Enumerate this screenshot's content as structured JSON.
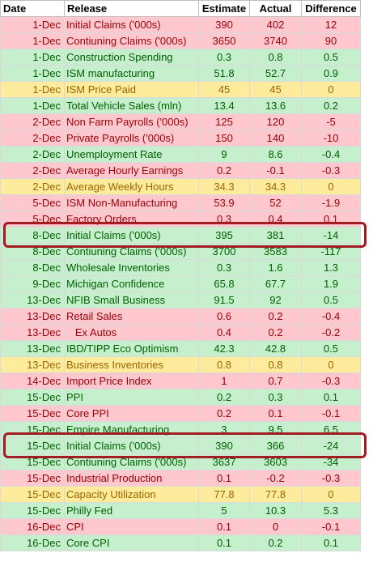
{
  "headers": [
    "Date",
    "Release",
    "Estimate",
    "Actual",
    "Difference"
  ],
  "colors": {
    "red_bg": "#ffc7ce",
    "red_fg": "#9c0006",
    "green_bg": "#c6efce",
    "green_fg": "#006100",
    "yellow_bg": "#ffeb9c",
    "yellow_fg": "#9c6500",
    "highlight_border": "#a31c23"
  },
  "rows": [
    {
      "date": "1-Dec",
      "release": "Initial Claims ('000s)",
      "estimate": "390",
      "actual": "402",
      "difference": "12",
      "status": "red"
    },
    {
      "date": "1-Dec",
      "release": "Contiuning Claims ('000s)",
      "estimate": "3650",
      "actual": "3740",
      "difference": "90",
      "status": "red"
    },
    {
      "date": "1-Dec",
      "release": "Construction Spending",
      "estimate": "0.3",
      "actual": "0.8",
      "difference": "0.5",
      "status": "green"
    },
    {
      "date": "1-Dec",
      "release": "ISM manufacturing",
      "estimate": "51.8",
      "actual": "52.7",
      "difference": "0.9",
      "status": "green"
    },
    {
      "date": "1-Dec",
      "release": "ISM Price Paid",
      "estimate": "45",
      "actual": "45",
      "difference": "0",
      "status": "yellow"
    },
    {
      "date": "1-Dec",
      "release": "Total Vehicle Sales (mln)",
      "estimate": "13.4",
      "actual": "13.6",
      "difference": "0.2",
      "status": "green"
    },
    {
      "date": "2-Dec",
      "release": "Non Farm Payrolls ('000s)",
      "estimate": "125",
      "actual": "120",
      "difference": "-5",
      "status": "red"
    },
    {
      "date": "2-Dec",
      "release": "Private Payrolls ('000s)",
      "estimate": "150",
      "actual": "140",
      "difference": "-10",
      "status": "red"
    },
    {
      "date": "2-Dec",
      "release": "Unemployment Rate",
      "estimate": "9",
      "actual": "8.6",
      "difference": "-0.4",
      "status": "green"
    },
    {
      "date": "2-Dec",
      "release": "Average Hourly Earnings",
      "estimate": "0.2",
      "actual": "-0.1",
      "difference": "-0.3",
      "status": "red"
    },
    {
      "date": "2-Dec",
      "release": "Average Weekly Hours",
      "estimate": "34.3",
      "actual": "34.3",
      "difference": "0",
      "status": "yellow"
    },
    {
      "date": "5-Dec",
      "release": "ISM Non-Manufacturing",
      "estimate": "53.9",
      "actual": "52",
      "difference": "-1.9",
      "status": "red"
    },
    {
      "date": "5-Dec",
      "release": "Factory Orders",
      "estimate": "0.3",
      "actual": "0.4",
      "difference": "0.1",
      "status": "red"
    },
    {
      "date": "8-Dec",
      "release": "Initial Claims ('000s)",
      "estimate": "395",
      "actual": "381",
      "difference": "-14",
      "status": "green"
    },
    {
      "date": "8-Dec",
      "release": "Contiuning Claims ('000s)",
      "estimate": "3700",
      "actual": "3583",
      "difference": "-117",
      "status": "green"
    },
    {
      "date": "8-Dec",
      "release": "Wholesale Inventories",
      "estimate": "0.3",
      "actual": "1.6",
      "difference": "1.3",
      "status": "green"
    },
    {
      "date": "9-Dec",
      "release": "Michigan Confidence",
      "estimate": "65.8",
      "actual": "67.7",
      "difference": "1.9",
      "status": "green"
    },
    {
      "date": "13-Dec",
      "release": "NFIB Small Business",
      "estimate": "91.5",
      "actual": "92",
      "difference": "0.5",
      "status": "green"
    },
    {
      "date": "13-Dec",
      "release": "Retail Sales",
      "estimate": "0.6",
      "actual": "0.2",
      "difference": "-0.4",
      "status": "red"
    },
    {
      "date": "13-Dec",
      "release": "   Ex Autos",
      "estimate": "0.4",
      "actual": "0.2",
      "difference": "-0.2",
      "status": "red"
    },
    {
      "date": "13-Dec",
      "release": "IBD/TIPP Eco Optimism",
      "estimate": "42.3",
      "actual": "42.8",
      "difference": "0.5",
      "status": "green"
    },
    {
      "date": "13-Dec",
      "release": "Business Inventories",
      "estimate": "0.8",
      "actual": "0.8",
      "difference": "0",
      "status": "yellow"
    },
    {
      "date": "14-Dec",
      "release": "Import Price Index",
      "estimate": "1",
      "actual": "0.7",
      "difference": "-0.3",
      "status": "red"
    },
    {
      "date": "15-Dec",
      "release": "PPI",
      "estimate": "0.2",
      "actual": "0.3",
      "difference": "0.1",
      "status": "green"
    },
    {
      "date": "15-Dec",
      "release": "Core PPI",
      "estimate": "0.2",
      "actual": "0.1",
      "difference": "-0.1",
      "status": "red"
    },
    {
      "date": "15-Dec",
      "release": "Empire Manufacturing",
      "estimate": "3",
      "actual": "9.5",
      "difference": "6.5",
      "status": "green"
    },
    {
      "date": "15-Dec",
      "release": "Initial Claims ('000s)",
      "estimate": "390",
      "actual": "366",
      "difference": "-24",
      "status": "green"
    },
    {
      "date": "15-Dec",
      "release": "Contiuning Claims ('000s)",
      "estimate": "3637",
      "actual": "3603",
      "difference": "-34",
      "status": "green"
    },
    {
      "date": "15-Dec",
      "release": "Industrial Production",
      "estimate": "0.1",
      "actual": "-0.2",
      "difference": "-0.3",
      "status": "red"
    },
    {
      "date": "15-Dec",
      "release": "Capacity Utilization",
      "estimate": "77.8",
      "actual": "77.8",
      "difference": "0",
      "status": "yellow"
    },
    {
      "date": "15-Dec",
      "release": "Philly Fed",
      "estimate": "5",
      "actual": "10.3",
      "difference": "5.3",
      "status": "green"
    },
    {
      "date": "16-Dec",
      "release": "CPI",
      "estimate": "0.1",
      "actual": "0",
      "difference": "-0.1",
      "status": "red"
    },
    {
      "date": "16-Dec",
      "release": "Core CPI",
      "estimate": "0.1",
      "actual": "0.2",
      "difference": "0.1",
      "status": "green"
    }
  ],
  "highlighted_rows": [
    13,
    26
  ]
}
